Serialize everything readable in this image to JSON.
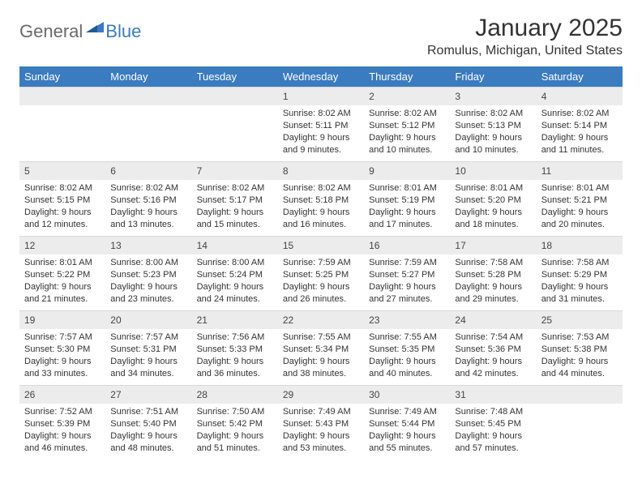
{
  "brand": {
    "general": "General",
    "blue": "Blue"
  },
  "title": "January 2025",
  "location": "Romulus, Michigan, United States",
  "colors": {
    "header_bg": "#3b7bbf",
    "header_text": "#ffffff",
    "daynum_bg": "#ececec",
    "text": "#333333",
    "logo_gray": "#6a6a6a",
    "logo_blue": "#3b7bbf",
    "background": "#ffffff",
    "border": "#d8d8d8"
  },
  "day_names": [
    "Sunday",
    "Monday",
    "Tuesday",
    "Wednesday",
    "Thursday",
    "Friday",
    "Saturday"
  ],
  "weeks": [
    [
      {
        "n": "",
        "sr": "",
        "ss": "",
        "dl": ""
      },
      {
        "n": "",
        "sr": "",
        "ss": "",
        "dl": ""
      },
      {
        "n": "",
        "sr": "",
        "ss": "",
        "dl": ""
      },
      {
        "n": "1",
        "sr": "Sunrise: 8:02 AM",
        "ss": "Sunset: 5:11 PM",
        "dl": "Daylight: 9 hours and 9 minutes."
      },
      {
        "n": "2",
        "sr": "Sunrise: 8:02 AM",
        "ss": "Sunset: 5:12 PM",
        "dl": "Daylight: 9 hours and 10 minutes."
      },
      {
        "n": "3",
        "sr": "Sunrise: 8:02 AM",
        "ss": "Sunset: 5:13 PM",
        "dl": "Daylight: 9 hours and 10 minutes."
      },
      {
        "n": "4",
        "sr": "Sunrise: 8:02 AM",
        "ss": "Sunset: 5:14 PM",
        "dl": "Daylight: 9 hours and 11 minutes."
      }
    ],
    [
      {
        "n": "5",
        "sr": "Sunrise: 8:02 AM",
        "ss": "Sunset: 5:15 PM",
        "dl": "Daylight: 9 hours and 12 minutes."
      },
      {
        "n": "6",
        "sr": "Sunrise: 8:02 AM",
        "ss": "Sunset: 5:16 PM",
        "dl": "Daylight: 9 hours and 13 minutes."
      },
      {
        "n": "7",
        "sr": "Sunrise: 8:02 AM",
        "ss": "Sunset: 5:17 PM",
        "dl": "Daylight: 9 hours and 15 minutes."
      },
      {
        "n": "8",
        "sr": "Sunrise: 8:02 AM",
        "ss": "Sunset: 5:18 PM",
        "dl": "Daylight: 9 hours and 16 minutes."
      },
      {
        "n": "9",
        "sr": "Sunrise: 8:01 AM",
        "ss": "Sunset: 5:19 PM",
        "dl": "Daylight: 9 hours and 17 minutes."
      },
      {
        "n": "10",
        "sr": "Sunrise: 8:01 AM",
        "ss": "Sunset: 5:20 PM",
        "dl": "Daylight: 9 hours and 18 minutes."
      },
      {
        "n": "11",
        "sr": "Sunrise: 8:01 AM",
        "ss": "Sunset: 5:21 PM",
        "dl": "Daylight: 9 hours and 20 minutes."
      }
    ],
    [
      {
        "n": "12",
        "sr": "Sunrise: 8:01 AM",
        "ss": "Sunset: 5:22 PM",
        "dl": "Daylight: 9 hours and 21 minutes."
      },
      {
        "n": "13",
        "sr": "Sunrise: 8:00 AM",
        "ss": "Sunset: 5:23 PM",
        "dl": "Daylight: 9 hours and 23 minutes."
      },
      {
        "n": "14",
        "sr": "Sunrise: 8:00 AM",
        "ss": "Sunset: 5:24 PM",
        "dl": "Daylight: 9 hours and 24 minutes."
      },
      {
        "n": "15",
        "sr": "Sunrise: 7:59 AM",
        "ss": "Sunset: 5:25 PM",
        "dl": "Daylight: 9 hours and 26 minutes."
      },
      {
        "n": "16",
        "sr": "Sunrise: 7:59 AM",
        "ss": "Sunset: 5:27 PM",
        "dl": "Daylight: 9 hours and 27 minutes."
      },
      {
        "n": "17",
        "sr": "Sunrise: 7:58 AM",
        "ss": "Sunset: 5:28 PM",
        "dl": "Daylight: 9 hours and 29 minutes."
      },
      {
        "n": "18",
        "sr": "Sunrise: 7:58 AM",
        "ss": "Sunset: 5:29 PM",
        "dl": "Daylight: 9 hours and 31 minutes."
      }
    ],
    [
      {
        "n": "19",
        "sr": "Sunrise: 7:57 AM",
        "ss": "Sunset: 5:30 PM",
        "dl": "Daylight: 9 hours and 33 minutes."
      },
      {
        "n": "20",
        "sr": "Sunrise: 7:57 AM",
        "ss": "Sunset: 5:31 PM",
        "dl": "Daylight: 9 hours and 34 minutes."
      },
      {
        "n": "21",
        "sr": "Sunrise: 7:56 AM",
        "ss": "Sunset: 5:33 PM",
        "dl": "Daylight: 9 hours and 36 minutes."
      },
      {
        "n": "22",
        "sr": "Sunrise: 7:55 AM",
        "ss": "Sunset: 5:34 PM",
        "dl": "Daylight: 9 hours and 38 minutes."
      },
      {
        "n": "23",
        "sr": "Sunrise: 7:55 AM",
        "ss": "Sunset: 5:35 PM",
        "dl": "Daylight: 9 hours and 40 minutes."
      },
      {
        "n": "24",
        "sr": "Sunrise: 7:54 AM",
        "ss": "Sunset: 5:36 PM",
        "dl": "Daylight: 9 hours and 42 minutes."
      },
      {
        "n": "25",
        "sr": "Sunrise: 7:53 AM",
        "ss": "Sunset: 5:38 PM",
        "dl": "Daylight: 9 hours and 44 minutes."
      }
    ],
    [
      {
        "n": "26",
        "sr": "Sunrise: 7:52 AM",
        "ss": "Sunset: 5:39 PM",
        "dl": "Daylight: 9 hours and 46 minutes."
      },
      {
        "n": "27",
        "sr": "Sunrise: 7:51 AM",
        "ss": "Sunset: 5:40 PM",
        "dl": "Daylight: 9 hours and 48 minutes."
      },
      {
        "n": "28",
        "sr": "Sunrise: 7:50 AM",
        "ss": "Sunset: 5:42 PM",
        "dl": "Daylight: 9 hours and 51 minutes."
      },
      {
        "n": "29",
        "sr": "Sunrise: 7:49 AM",
        "ss": "Sunset: 5:43 PM",
        "dl": "Daylight: 9 hours and 53 minutes."
      },
      {
        "n": "30",
        "sr": "Sunrise: 7:49 AM",
        "ss": "Sunset: 5:44 PM",
        "dl": "Daylight: 9 hours and 55 minutes."
      },
      {
        "n": "31",
        "sr": "Sunrise: 7:48 AM",
        "ss": "Sunset: 5:45 PM",
        "dl": "Daylight: 9 hours and 57 minutes."
      },
      {
        "n": "",
        "sr": "",
        "ss": "",
        "dl": ""
      }
    ]
  ]
}
